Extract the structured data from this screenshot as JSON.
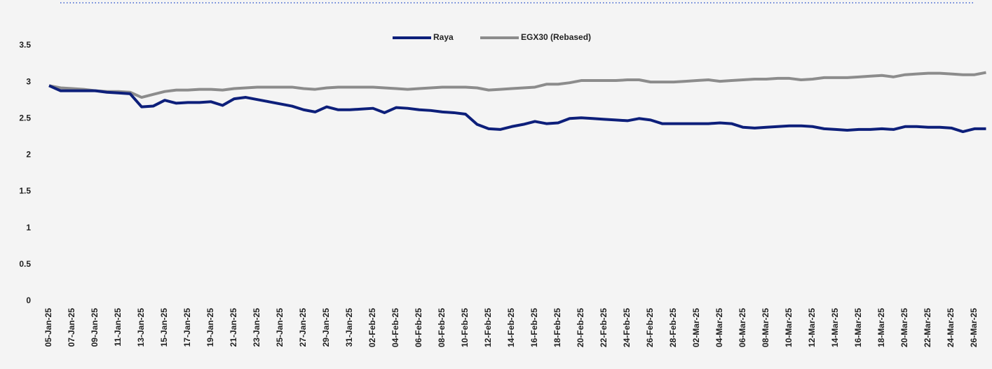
{
  "chart_data": {
    "type": "line",
    "categories": [
      "05-Jan-25",
      null,
      "07-Jan-25",
      null,
      "09-Jan-25",
      null,
      "11-Jan-25",
      null,
      "13-Jan-25",
      null,
      "15-Jan-25",
      null,
      "17-Jan-25",
      null,
      "19-Jan-25",
      null,
      "21-Jan-25",
      null,
      "23-Jan-25",
      null,
      "25-Jan-25",
      null,
      "27-Jan-25",
      null,
      "29-Jan-25",
      null,
      "31-Jan-25",
      null,
      "02-Feb-25",
      null,
      "04-Feb-25",
      null,
      "06-Feb-25",
      null,
      "08-Feb-25",
      null,
      "10-Feb-25",
      null,
      "12-Feb-25",
      null,
      "14-Feb-25",
      null,
      "16-Feb-25",
      null,
      "18-Feb-25",
      null,
      "20-Feb-25",
      null,
      "22-Feb-25",
      null,
      "24-Feb-25",
      null,
      "26-Feb-25",
      null,
      "28-Feb-25",
      null,
      "02-Mar-25",
      null,
      "04-Mar-25",
      null,
      "06-Mar-25",
      null,
      "08-Mar-25",
      null,
      "10-Mar-25",
      null,
      "12-Mar-25",
      null,
      "14-Mar-25",
      null,
      "16-Mar-25",
      null,
      "18-Mar-25",
      null,
      "20-Mar-25",
      null,
      "22-Mar-25",
      null,
      "24-Mar-25",
      null,
      "26-Mar-25",
      null
    ],
    "series": [
      {
        "name": "Raya",
        "color": "#0d1f7a",
        "values": [
          2.95,
          2.88,
          2.88,
          2.88,
          2.88,
          2.86,
          2.85,
          2.84,
          2.66,
          2.67,
          2.75,
          2.71,
          2.72,
          2.72,
          2.73,
          2.68,
          2.77,
          2.79,
          2.76,
          2.73,
          2.7,
          2.67,
          2.62,
          2.59,
          2.66,
          2.62,
          2.62,
          2.63,
          2.64,
          2.58,
          2.65,
          2.64,
          2.62,
          2.61,
          2.59,
          2.58,
          2.56,
          2.42,
          2.36,
          2.35,
          2.39,
          2.42,
          2.46,
          2.43,
          2.44,
          2.5,
          2.51,
          2.5,
          2.49,
          2.48,
          2.47,
          2.5,
          2.48,
          2.43,
          2.43,
          2.43,
          2.43,
          2.43,
          2.44,
          2.43,
          2.38,
          2.37,
          2.38,
          2.39,
          2.4,
          2.4,
          2.39,
          2.36,
          2.35,
          2.34,
          2.35,
          2.35,
          2.36,
          2.35,
          2.39,
          2.39,
          2.38,
          2.38,
          2.37,
          2.32,
          2.36,
          2.36
        ]
      },
      {
        "name": "EGX30 (Rebased)",
        "color": "#8c8c8c",
        "values": [
          2.95,
          2.92,
          2.91,
          2.9,
          2.88,
          2.87,
          2.87,
          2.86,
          2.79,
          2.83,
          2.87,
          2.89,
          2.89,
          2.9,
          2.9,
          2.89,
          2.91,
          2.92,
          2.93,
          2.93,
          2.93,
          2.93,
          2.91,
          2.9,
          2.92,
          2.93,
          2.93,
          2.93,
          2.93,
          2.92,
          2.91,
          2.9,
          2.91,
          2.92,
          2.93,
          2.93,
          2.93,
          2.92,
          2.89,
          2.9,
          2.91,
          2.92,
          2.93,
          2.97,
          2.97,
          2.99,
          3.02,
          3.02,
          3.02,
          3.02,
          3.03,
          3.03,
          3.0,
          3.0,
          3.0,
          3.01,
          3.02,
          3.03,
          3.01,
          3.02,
          3.03,
          3.04,
          3.04,
          3.05,
          3.05,
          3.03,
          3.04,
          3.06,
          3.06,
          3.06,
          3.07,
          3.08,
          3.09,
          3.07,
          3.1,
          3.11,
          3.12,
          3.12,
          3.11,
          3.1,
          3.1,
          3.13
        ]
      }
    ],
    "ylim": [
      0,
      3.5
    ],
    "yticks": [
      0,
      {
        "value": 0.5,
        "label": "0.5"
      },
      1,
      {
        "value": 1.5,
        "label": "1.5"
      },
      2,
      {
        "value": 2.5,
        "label": "2.5"
      },
      3,
      {
        "value": 3.5,
        "label": "3.5"
      }
    ],
    "grid": false,
    "legend": "top"
  }
}
